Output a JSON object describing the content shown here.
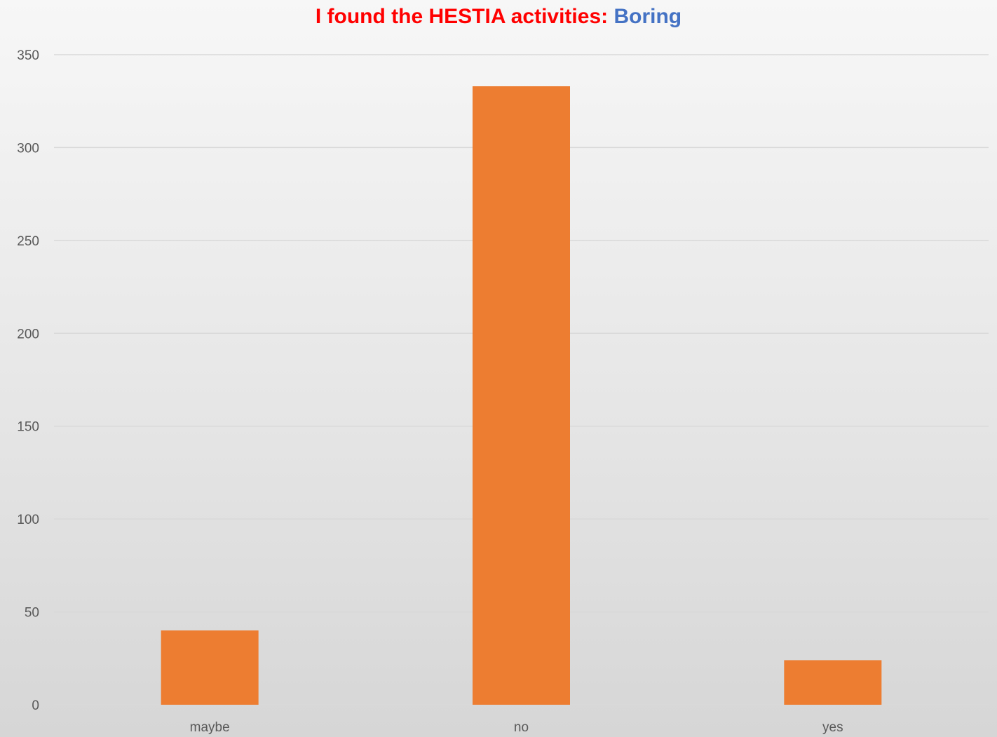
{
  "chart_data": {
    "type": "bar",
    "title": {
      "prefix": "I found the HESTIA activities:",
      "emphasis": "Boring"
    },
    "categories": [
      "maybe",
      "no",
      "yes"
    ],
    "values": [
      40,
      333,
      24
    ],
    "ylim": [
      0,
      350
    ],
    "y_ticks": [
      "0",
      "50",
      "100",
      "150",
      "200",
      "250",
      "300",
      "350"
    ],
    "grid": true,
    "legend": "none",
    "colors": {
      "bar": "#ED7D31",
      "title_prefix": "#FF0000",
      "title_emphasis": "#4472C4",
      "gridline": "#D9D9D9",
      "text": "#595959"
    }
  }
}
